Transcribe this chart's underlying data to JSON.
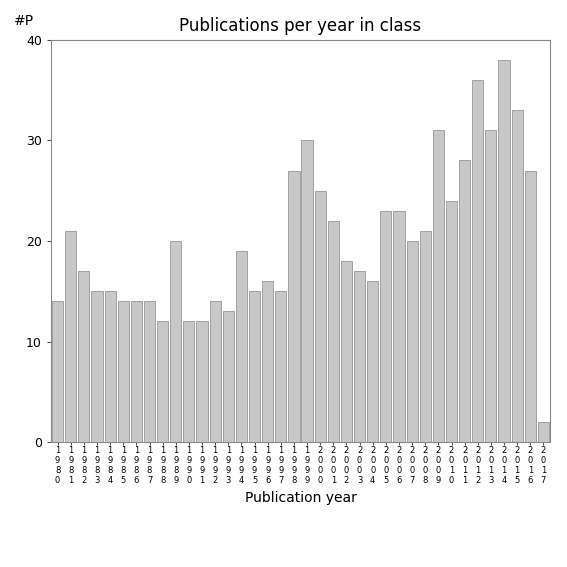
{
  "title": "Publications per year in class",
  "xlabel": "Publication year",
  "ylabel": "#P",
  "years": [
    "1980",
    "1981",
    "1982",
    "1983",
    "1984",
    "1985",
    "1986",
    "1987",
    "1988",
    "1989",
    "1990",
    "1991",
    "1992",
    "1993",
    "1994",
    "1995",
    "1996",
    "1997",
    "1998",
    "1999",
    "2000",
    "2001",
    "2002",
    "2003",
    "2004",
    "2005",
    "2006",
    "2007",
    "2008",
    "2009",
    "2010",
    "2011",
    "2012",
    "2013",
    "2014",
    "2015",
    "2016",
    "2017"
  ],
  "values": [
    14,
    21,
    17,
    15,
    15,
    14,
    14,
    14,
    12,
    20,
    12,
    12,
    14,
    13,
    19,
    15,
    16,
    15,
    27,
    30,
    25,
    22,
    18,
    17,
    16,
    23,
    23,
    20,
    21,
    31,
    24,
    28,
    36,
    31,
    38,
    33,
    27,
    2
  ],
  "bar_color": "#c8c8c8",
  "bar_edgecolor": "#888888",
  "ylim": [
    0,
    40
  ],
  "yticks": [
    0,
    10,
    20,
    30,
    40
  ],
  "background_color": "#ffffff",
  "title_fontsize": 12,
  "axis_label_fontsize": 10,
  "tick_label_fontsize": 9,
  "x_tick_fontsize": 6
}
